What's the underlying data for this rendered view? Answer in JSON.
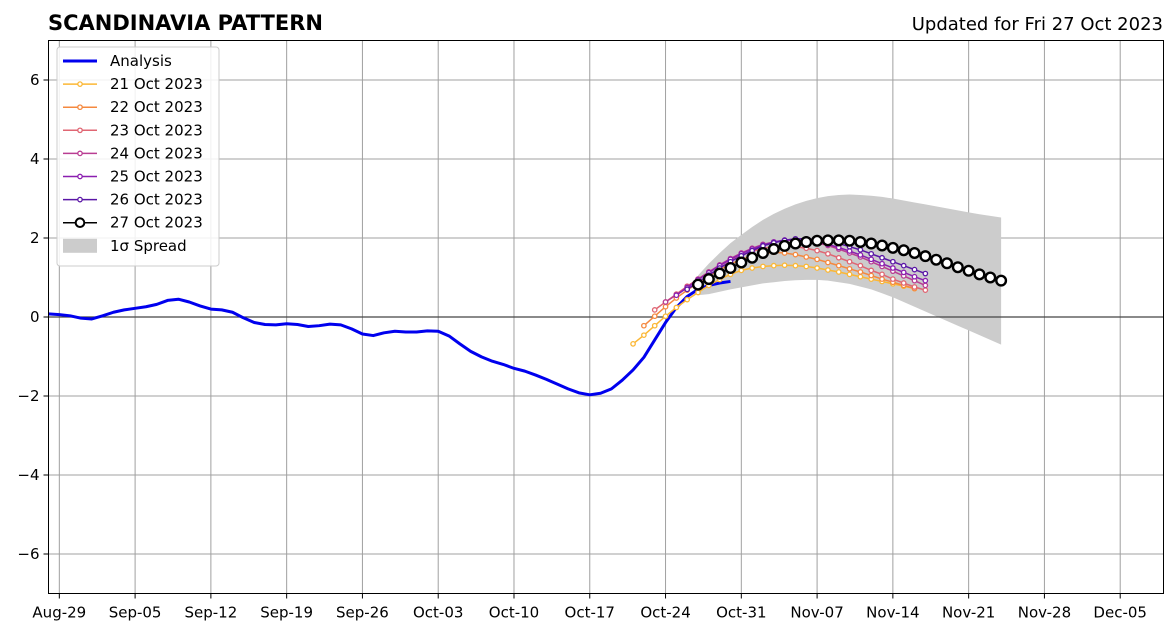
{
  "chart_data": {
    "type": "line",
    "title": "SCANDINAVIA PATTERN",
    "subtitle": "Updated for Fri 27 Oct 2023",
    "xlabel": "",
    "ylabel": "",
    "x_range": [
      "2023-08-28",
      "2023-12-09"
    ],
    "ylim": [
      -7,
      7
    ],
    "grid": true,
    "legend_position": "top-left",
    "x_ticks": [
      "Aug-29",
      "Sep-05",
      "Sep-12",
      "Sep-19",
      "Sep-26",
      "Oct-03",
      "Oct-10",
      "Oct-17",
      "Oct-24",
      "Oct-31",
      "Nov-07",
      "Nov-14",
      "Nov-21",
      "Nov-28",
      "Dec-05"
    ],
    "y_ticks": [
      "6",
      "4",
      "2",
      "0",
      "−2",
      "−4",
      "−6"
    ],
    "y_tick_values": [
      6,
      4,
      2,
      0,
      -2,
      -4,
      -6
    ],
    "analysis": {
      "name": "Analysis",
      "color": "#0000ee",
      "start": "2023-08-28",
      "values": [
        0.08,
        0.06,
        0.03,
        -0.03,
        -0.05,
        0.03,
        0.12,
        0.18,
        0.22,
        0.26,
        0.32,
        0.42,
        0.45,
        0.38,
        0.28,
        0.2,
        0.18,
        0.12,
        -0.02,
        -0.14,
        -0.19,
        -0.2,
        -0.17,
        -0.19,
        -0.24,
        -0.22,
        -0.18,
        -0.2,
        -0.3,
        -0.43,
        -0.47,
        -0.4,
        -0.36,
        -0.38,
        -0.38,
        -0.35,
        -0.36,
        -0.48,
        -0.68,
        -0.87,
        -1.01,
        -1.12,
        -1.2,
        -1.3,
        -1.37,
        -1.47,
        -1.58,
        -1.7,
        -1.82,
        -1.92,
        -1.97,
        -1.93,
        -1.82,
        -1.6,
        -1.34,
        -1.02,
        -0.58,
        -0.14,
        0.24,
        0.52,
        0.7,
        0.8,
        0.86,
        0.9
      ]
    },
    "forecasts": [
      {
        "name": "21 Oct 2023",
        "color": "#fbb735",
        "start": "2023-10-21",
        "values": [
          -0.68,
          -0.46,
          -0.22,
          0.02,
          0.24,
          0.44,
          0.62,
          0.8,
          0.95,
          1.08,
          1.18,
          1.24,
          1.28,
          1.3,
          1.31,
          1.3,
          1.28,
          1.24,
          1.19,
          1.14,
          1.08,
          1.02,
          0.96,
          0.9,
          0.84,
          0.78,
          0.72
        ]
      },
      {
        "name": "22 Oct 2023",
        "color": "#f5893f",
        "start": "2023-10-22",
        "values": [
          -0.22,
          0.02,
          0.26,
          0.48,
          0.68,
          0.86,
          1.04,
          1.2,
          1.34,
          1.46,
          1.55,
          1.6,
          1.64,
          1.62,
          1.58,
          1.52,
          1.46,
          1.38,
          1.3,
          1.22,
          1.14,
          1.05,
          0.96,
          0.88,
          0.8,
          0.72
        ]
      },
      {
        "name": "23 Oct 2023",
        "color": "#e06673",
        "start": "2023-10-23",
        "values": [
          0.18,
          0.38,
          0.58,
          0.78,
          0.96,
          1.14,
          1.3,
          1.44,
          1.56,
          1.66,
          1.74,
          1.78,
          1.8,
          1.78,
          1.74,
          1.68,
          1.6,
          1.5,
          1.4,
          1.3,
          1.18,
          1.08,
          0.96,
          0.86,
          0.76,
          0.68
        ]
      },
      {
        "name": "24 Oct 2023",
        "color": "#b93d92",
        "start": "2023-10-24",
        "values": [
          0.38,
          0.56,
          0.76,
          0.96,
          1.14,
          1.32,
          1.48,
          1.62,
          1.74,
          1.84,
          1.9,
          1.94,
          1.95,
          1.93,
          1.88,
          1.81,
          1.72,
          1.62,
          1.52,
          1.4,
          1.28,
          1.16,
          1.04,
          0.92,
          0.8
        ]
      },
      {
        "name": "25 Oct 2023",
        "color": "#8b1fb0",
        "start": "2023-10-25",
        "values": [
          0.55,
          0.74,
          0.94,
          1.12,
          1.3,
          1.46,
          1.6,
          1.72,
          1.82,
          1.9,
          1.95,
          1.97,
          1.95,
          1.91,
          1.84,
          1.76,
          1.67,
          1.57,
          1.46,
          1.35,
          1.24,
          1.13,
          1.02,
          0.92
        ]
      },
      {
        "name": "26 Oct 2023",
        "color": "#5a16a6",
        "start": "2023-10-26",
        "values": [
          0.7,
          0.88,
          1.06,
          1.24,
          1.4,
          1.55,
          1.68,
          1.8,
          1.88,
          1.94,
          1.98,
          1.98,
          1.96,
          1.92,
          1.86,
          1.78,
          1.7,
          1.6,
          1.5,
          1.4,
          1.3,
          1.2,
          1.1
        ]
      }
    ],
    "latest": {
      "name": "27 Oct 2023",
      "color": "#000000",
      "start": "2023-10-27",
      "values": [
        0.82,
        0.96,
        1.1,
        1.24,
        1.38,
        1.5,
        1.62,
        1.72,
        1.8,
        1.86,
        1.9,
        1.93,
        1.94,
        1.94,
        1.93,
        1.9,
        1.86,
        1.81,
        1.75,
        1.69,
        1.62,
        1.54,
        1.45,
        1.36,
        1.26,
        1.17,
        1.08,
        1.0,
        0.92
      ]
    },
    "spread": {
      "name": "1σ Spread",
      "color": "#cccccc",
      "start": "2023-10-27",
      "upper": [
        1.05,
        1.35,
        1.62,
        1.87,
        2.08,
        2.28,
        2.46,
        2.61,
        2.74,
        2.85,
        2.94,
        3.01,
        3.06,
        3.09,
        3.1,
        3.09,
        3.07,
        3.04,
        3.0,
        2.95,
        2.9,
        2.85,
        2.8,
        2.75,
        2.7,
        2.65,
        2.6,
        2.56,
        2.52
      ],
      "lower": [
        0.55,
        0.58,
        0.64,
        0.7,
        0.75,
        0.8,
        0.85,
        0.88,
        0.91,
        0.93,
        0.94,
        0.94,
        0.92,
        0.88,
        0.84,
        0.77,
        0.7,
        0.6,
        0.5,
        0.38,
        0.26,
        0.14,
        0.02,
        -0.1,
        -0.22,
        -0.34,
        -0.46,
        -0.58,
        -0.7
      ]
    }
  }
}
